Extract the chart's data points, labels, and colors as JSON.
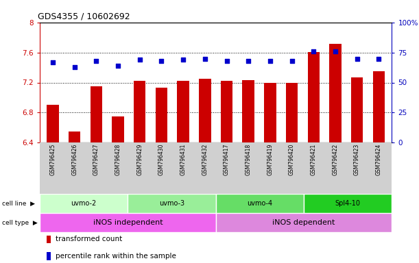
{
  "title": "GDS4355 / 10602692",
  "samples": [
    "GSM796425",
    "GSM796426",
    "GSM796427",
    "GSM796428",
    "GSM796429",
    "GSM796430",
    "GSM796431",
    "GSM796432",
    "GSM796417",
    "GSM796418",
    "GSM796419",
    "GSM796420",
    "GSM796421",
    "GSM796422",
    "GSM796423",
    "GSM796424"
  ],
  "bar_values": [
    6.9,
    6.55,
    7.15,
    6.75,
    7.22,
    7.13,
    7.22,
    7.25,
    7.22,
    7.23,
    7.2,
    7.2,
    7.61,
    7.72,
    7.27,
    7.35
  ],
  "percentile_values": [
    67,
    63,
    68,
    64,
    69,
    68,
    69,
    70,
    68,
    68,
    68,
    68,
    76,
    76,
    70,
    70
  ],
  "ylim_left": [
    6.4,
    8.0
  ],
  "ylim_right": [
    0,
    100
  ],
  "yticks_left": [
    6.4,
    6.8,
    7.2,
    7.6,
    8.0
  ],
  "yticks_right": [
    0,
    25,
    50,
    75,
    100
  ],
  "ytick_labels_left": [
    "6.4",
    "6.8",
    "7.2",
    "7.6",
    "8"
  ],
  "ytick_labels_right": [
    "0",
    "25",
    "50",
    "75",
    "100%"
  ],
  "hlines": [
    6.8,
    7.2,
    7.6
  ],
  "bar_color": "#cc0000",
  "dot_color": "#0000cc",
  "cell_line_groups": [
    {
      "label": "uvmo-2",
      "start": 0,
      "end": 3,
      "color": "#ccffcc"
    },
    {
      "label": "uvmo-3",
      "start": 4,
      "end": 7,
      "color": "#99ee99"
    },
    {
      "label": "uvmo-4",
      "start": 8,
      "end": 11,
      "color": "#66dd66"
    },
    {
      "label": "Spl4-10",
      "start": 12,
      "end": 15,
      "color": "#22cc22"
    }
  ],
  "cell_type_groups": [
    {
      "label": "iNOS independent",
      "start": 0,
      "end": 7,
      "color": "#ee66ee"
    },
    {
      "label": "iNOS dependent",
      "start": 8,
      "end": 15,
      "color": "#dd88dd"
    }
  ],
  "legend_items": [
    {
      "label": "transformed count",
      "color": "#cc0000"
    },
    {
      "label": "percentile rank within the sample",
      "color": "#0000cc"
    }
  ],
  "left_axis_color": "#cc0000",
  "right_axis_color": "#0000bb",
  "xlabel_bg_color": "#d0d0d0",
  "row_label_color": "#000000"
}
